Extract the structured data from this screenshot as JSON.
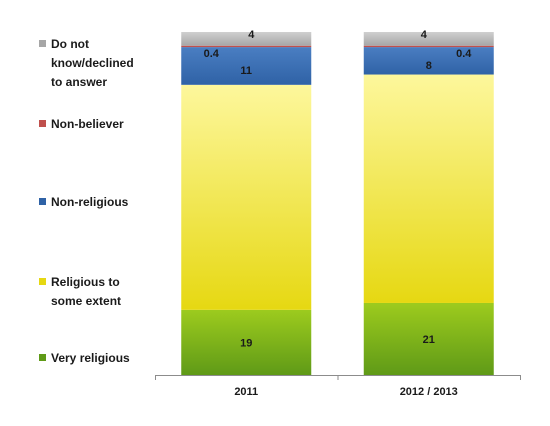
{
  "chart_data": {
    "type": "bar",
    "stacked": true,
    "percent_stacked": true,
    "categories": [
      "2011",
      "2012 / 2013"
    ],
    "series": [
      {
        "name": "Very religious",
        "values": [
          19,
          21
        ],
        "color_top": "#9dcb1e",
        "color_bottom": "#5f9a17",
        "labels": [
          "19",
          "21"
        ]
      },
      {
        "name": "Religious to some extent",
        "values": [
          65.6,
          66.6
        ],
        "color_top": "#fdf79c",
        "color_bottom": "#e6d812",
        "labels": [
          "",
          ""
        ]
      },
      {
        "name": "Non-religious",
        "values": [
          11,
          8
        ],
        "color_top": "#4a7ec2",
        "color_bottom": "#2f62a6",
        "labels": [
          "11",
          "8"
        ]
      },
      {
        "name": "Non-believer",
        "values": [
          0.4,
          0.4
        ],
        "color_top": "#c0504d",
        "color_bottom": "#c0504d",
        "labels": [
          "0.4",
          "0.4"
        ]
      },
      {
        "name": "Do not know/declined to answer",
        "values": [
          4,
          4
        ],
        "color_top": "#cfcfcf",
        "color_bottom": "#a6a6a6",
        "labels": [
          "4",
          "4"
        ]
      }
    ],
    "legend_lines": [
      [
        "Do not",
        "know/declined",
        "to answer"
      ],
      [
        "Non-believer"
      ],
      [
        "Non-religious"
      ],
      [
        "Religious to",
        "some extent"
      ],
      [
        "Very religious"
      ]
    ],
    "legend_position": "left",
    "ylim": [
      0,
      100
    ],
    "axis_color": "#8c8c8c"
  }
}
